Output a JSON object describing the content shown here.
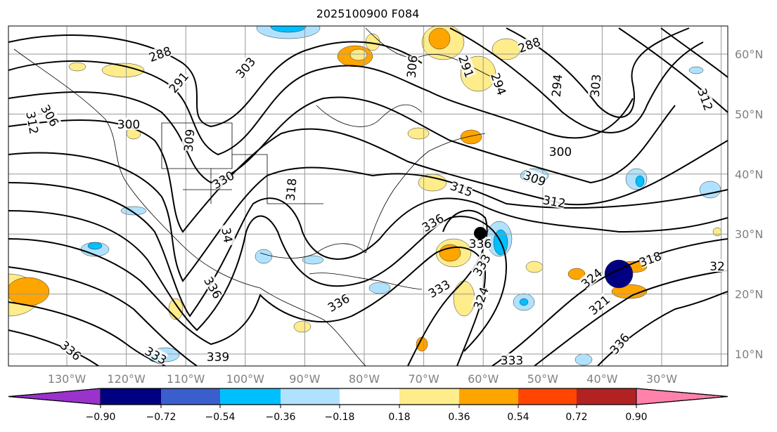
{
  "title": "2025100900 F084",
  "map": {
    "lon_labels": [
      "130°W",
      "120°W",
      "110°W",
      "100°W",
      "90°W",
      "80°W",
      "70°W",
      "60°W",
      "50°W",
      "40°W",
      "30°W"
    ],
    "lat_labels": [
      "60°N",
      "50°N",
      "40°N",
      "30°N",
      "20°N",
      "10°N"
    ],
    "contour_labels": [
      "288",
      "291",
      "303",
      "306",
      "312",
      "300",
      "309",
      "330",
      "318",
      "315",
      "309",
      "312",
      "300",
      "294",
      "303",
      "312",
      "288",
      "291",
      "306",
      "294",
      "336",
      "336",
      "333",
      "333",
      "324",
      "336",
      "339",
      "333",
      "336",
      "34",
      "318",
      "32",
      "324",
      "321",
      "336",
      "333",
      "336"
    ],
    "marker": "black-dot"
  },
  "colorbar": {
    "ticks": [
      "−0.90",
      "−0.72",
      "−0.54",
      "−0.36",
      "−0.18",
      "0.18",
      "0.36",
      "0.54",
      "0.72",
      "0.90"
    ],
    "colors": [
      "#9933cc",
      "#000080",
      "#3a5fcd",
      "#00bfff",
      "#b0e2ff",
      "#ffffff",
      "#ffec8b",
      "#ffa500",
      "#ff4500",
      "#b22222",
      "#ff82ab"
    ]
  }
}
